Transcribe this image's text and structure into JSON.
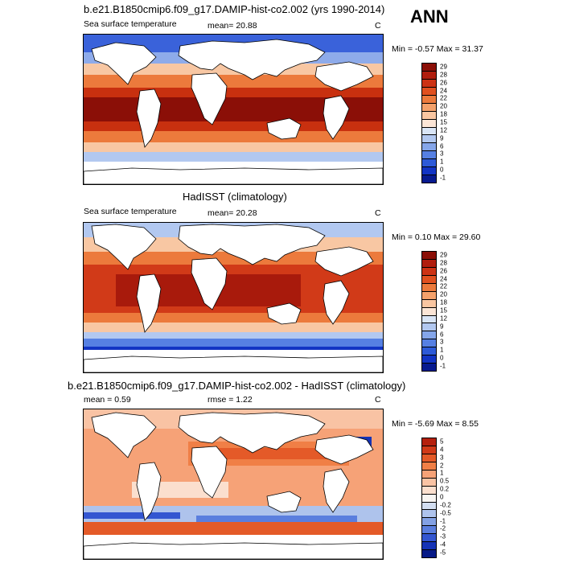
{
  "header": {
    "ann_label": "ANN"
  },
  "panels": [
    {
      "title": "b.e21.B1850cmip6.f09_g17.DAMIP-hist-co2.002 (yrs 1990-2014)",
      "subtitle": "Sea surface temperature",
      "stat_text": "mean=  20.88",
      "units": "C",
      "minmax": "Min =  -0.57 Max =  31.37",
      "colorbar_labels": [
        "29",
        "28",
        "26",
        "24",
        "22",
        "20",
        "18",
        "15",
        "12",
        "9",
        "6",
        "3",
        "1",
        "0",
        "-1"
      ],
      "colorbar_colors": [
        "#8b0f07",
        "#b01d0e",
        "#cc3214",
        "#e0501f",
        "#ec7a3c",
        "#f4a16b",
        "#f9c6a1",
        "#fbe5d6",
        "#d9e5f6",
        "#b2c8f0",
        "#85a6ea",
        "#5680e3",
        "#2d5ad8",
        "#1234c4",
        "#071a8f"
      ]
    },
    {
      "title": "HadISST (climatology)",
      "subtitle": "Sea surface temperature",
      "stat_text": "mean=  20.28",
      "units": "C",
      "minmax": "Min =   0.10 Max =  29.60",
      "colorbar_labels": [
        "29",
        "28",
        "26",
        "24",
        "22",
        "20",
        "18",
        "15",
        "12",
        "9",
        "6",
        "3",
        "1",
        "0",
        "-1"
      ],
      "colorbar_colors": [
        "#8b0f07",
        "#b01d0e",
        "#cc3214",
        "#e0501f",
        "#ec7a3c",
        "#f4a16b",
        "#f9c6a1",
        "#fbe5d6",
        "#d9e5f6",
        "#b2c8f0",
        "#85a6ea",
        "#5680e3",
        "#2d5ad8",
        "#1234c4",
        "#071a8f"
      ]
    },
    {
      "title": "b.e21.B1850cmip6.f09_g17.DAMIP-hist-co2.002 - HadISST (climatology)",
      "stat_text": "mean =   0.59",
      "stat2_text": "rmse =    1.22",
      "units": "C",
      "minmax": "Min =  -5.69 Max =   8.55",
      "colorbar_labels": [
        "5",
        "4",
        "3",
        "2",
        "1",
        "0.5",
        "0.2",
        "0",
        "-0.2",
        "-0.5",
        "-1",
        "-2",
        "-3",
        "-4",
        "-5"
      ],
      "colorbar_colors": [
        "#b5200d",
        "#d13a18",
        "#e45a28",
        "#f07f46",
        "#f6a277",
        "#f9c3a4",
        "#fbdfce",
        "#f8f5f2",
        "#d3def1",
        "#aec3ec",
        "#83a1e4",
        "#5a7ede",
        "#3356d1",
        "#1533b6",
        "#071a87"
      ]
    }
  ]
}
